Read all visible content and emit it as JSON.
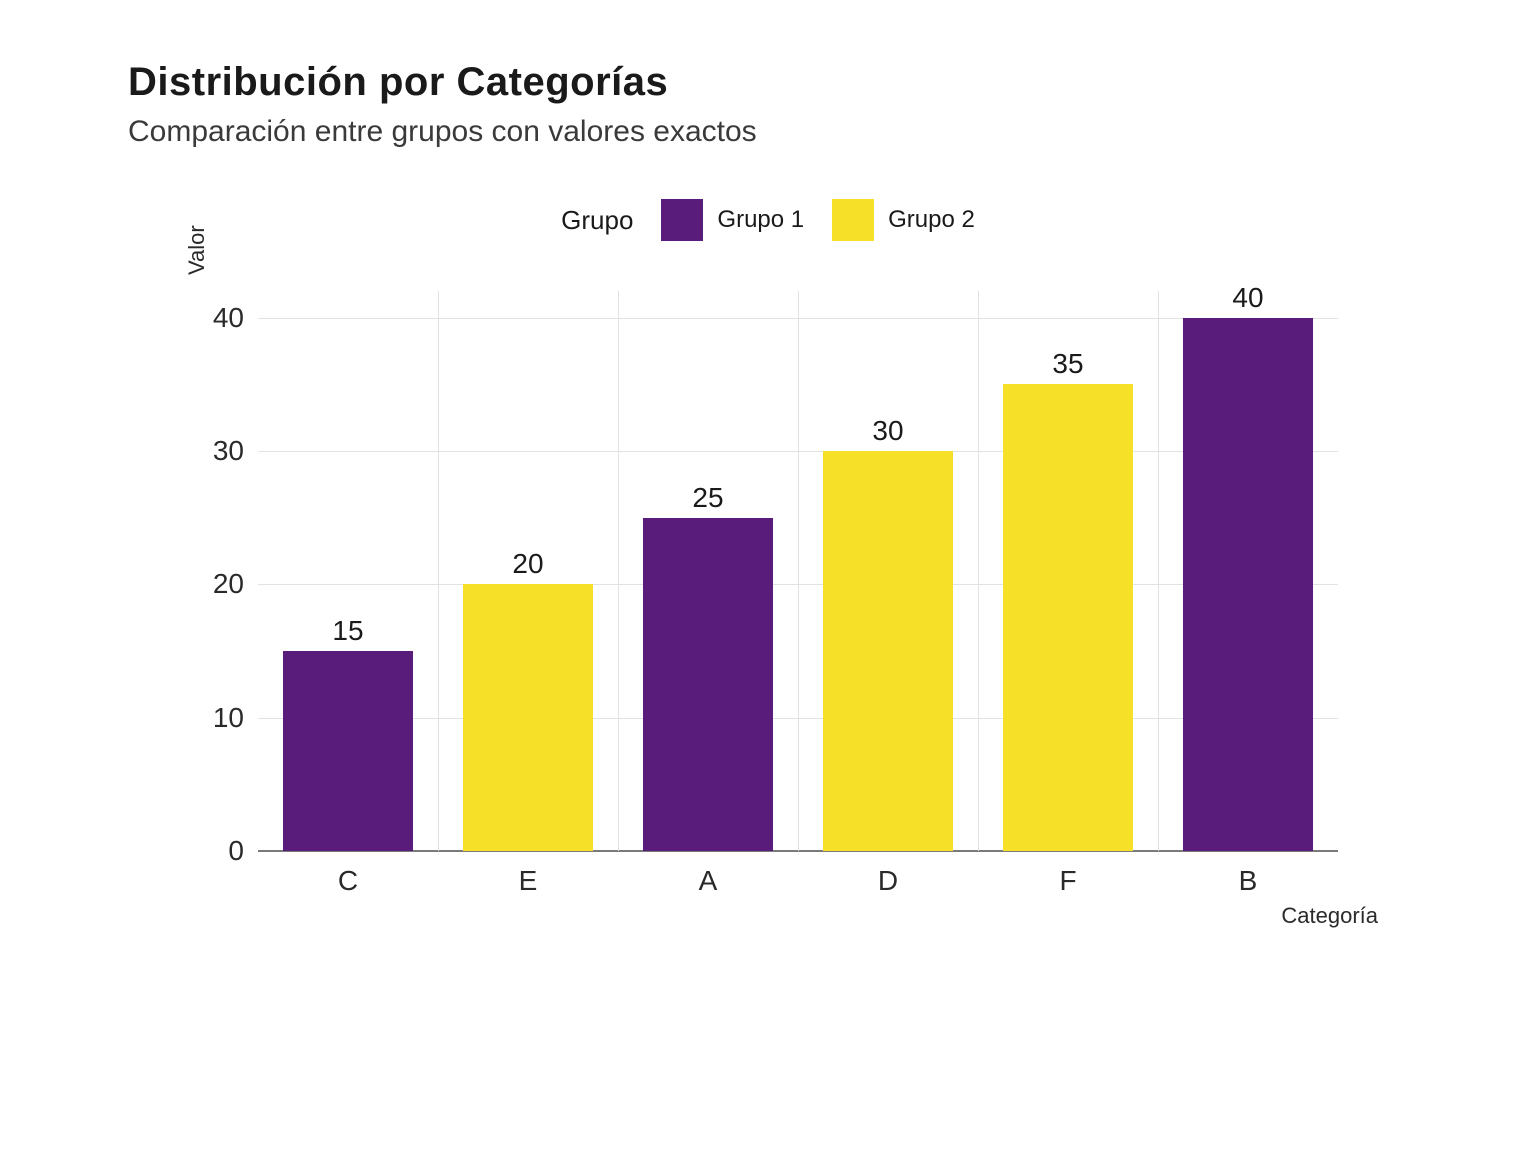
{
  "chart": {
    "type": "bar",
    "title": "Distribución por Categorías",
    "subtitle": "Comparación entre grupos con valores exactos",
    "title_fontsize": 40,
    "subtitle_fontsize": 30,
    "legend": {
      "title": "Grupo",
      "items": [
        {
          "label": "Grupo 1",
          "color": "#5a1c7a"
        },
        {
          "label": "Grupo 2",
          "color": "#f6e028"
        }
      ],
      "position": "top-center",
      "swatch_size": 42,
      "fontsize": 24
    },
    "x_axis": {
      "title": "Categoría",
      "categories": [
        "C",
        "E",
        "A",
        "D",
        "F",
        "B"
      ],
      "tick_fontsize": 28,
      "title_fontsize": 22
    },
    "y_axis": {
      "title": "Valor",
      "ylim": [
        0,
        42
      ],
      "ticks": [
        0,
        10,
        20,
        30,
        40
      ],
      "tick_fontsize": 28,
      "title_fontsize": 22
    },
    "grid": {
      "horizontal": true,
      "vertical": true,
      "color": "#e2e2e2"
    },
    "baseline_color": "#7a7a7a",
    "bars": [
      {
        "category": "C",
        "value": 15,
        "group": "Grupo 1",
        "color": "#5a1c7a",
        "label": "15"
      },
      {
        "category": "E",
        "value": 20,
        "group": "Grupo 2",
        "color": "#f6e028",
        "label": "20"
      },
      {
        "category": "A",
        "value": 25,
        "group": "Grupo 1",
        "color": "#5a1c7a",
        "label": "25"
      },
      {
        "category": "D",
        "value": 30,
        "group": "Grupo 2",
        "color": "#f6e028",
        "label": "30"
      },
      {
        "category": "F",
        "value": 35,
        "group": "Grupo 2",
        "color": "#f6e028",
        "label": "35"
      },
      {
        "category": "B",
        "value": 40,
        "group": "Grupo 1",
        "color": "#5a1c7a",
        "label": "40"
      }
    ],
    "bar_width_ratio": 0.72,
    "background_color": "#ffffff",
    "value_label_fontsize": 28
  }
}
